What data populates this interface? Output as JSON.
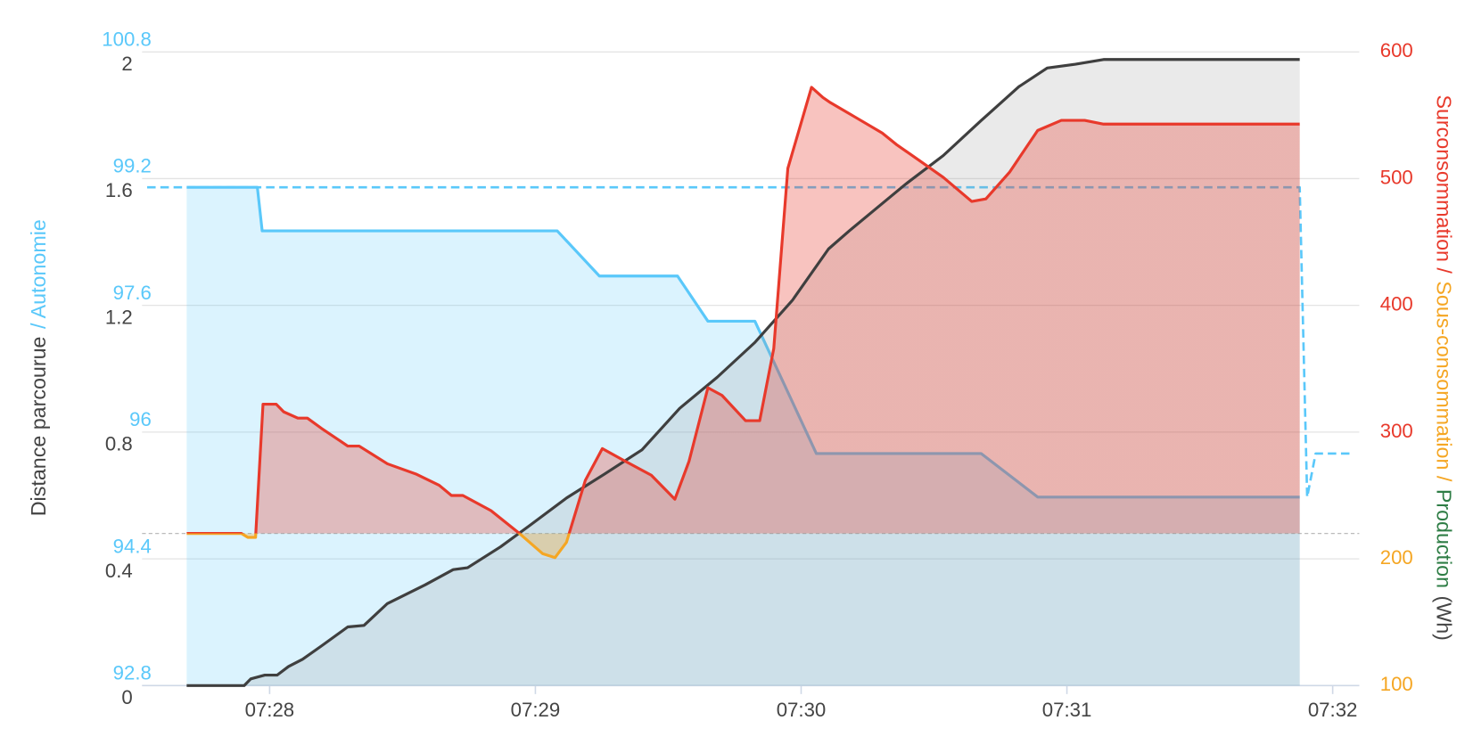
{
  "chart_data": {
    "type": "line",
    "grid": true,
    "xlim": [
      27.52,
      32.1
    ],
    "xticks": [
      {
        "value": 28,
        "label": "07:28"
      },
      {
        "value": 29,
        "label": "07:29"
      },
      {
        "value": 30,
        "label": "07:30"
      },
      {
        "value": 31,
        "label": "07:31"
      },
      {
        "value": 32,
        "label": "07:32"
      }
    ],
    "ylim": [
      0,
      2
    ],
    "yticks": [
      0,
      0.4,
      0.8,
      1.2,
      1.6,
      2
    ],
    "y3lim": [
      92.8,
      100.8
    ],
    "y3ticks": [
      92.8,
      94.4,
      96,
      97.6,
      99.2,
      100.8
    ],
    "y2lim": [
      100,
      600
    ],
    "y2ticks": [
      100,
      200,
      300,
      400,
      500,
      600
    ],
    "baseline": 220,
    "ylabel": [
      {
        "text": "Distance parcourue",
        "color": "#444444"
      },
      {
        "text": "/ Autonomie",
        "color": "#5ac8fa"
      }
    ],
    "y2label": [
      {
        "text": "Surconsommation /",
        "color": "#e8392b"
      },
      {
        "text": "Sous-consommation /",
        "color": "#f5a623"
      },
      {
        "text": "Production",
        "color": "#2e7d45"
      },
      {
        "text": "(Wh)",
        "color": "#444444"
      }
    ],
    "series": [
      {
        "axis": "y3",
        "color": "#5ac8fa",
        "fill": "rgba(90,200,250,0.22)",
        "x": [
          27.688,
          27.954,
          27.972,
          29.082,
          29.241,
          29.535,
          29.649,
          29.826,
          30.057,
          30.677,
          30.89,
          31.876
        ],
        "values": [
          99.09,
          99.09,
          98.54,
          98.54,
          97.97,
          97.97,
          97.4,
          97.4,
          95.73,
          95.73,
          95.18,
          95.18
        ]
      },
      {
        "axis": "y3",
        "color": "#5ac8fa",
        "dashed": true,
        "x": [
          27.539,
          31.876,
          31.904,
          31.936,
          32.067
        ],
        "values": [
          99.09,
          99.09,
          95.18,
          95.73,
          95.73
        ]
      },
      {
        "axis": "y",
        "color": "#3f3f3f",
        "fill": "rgba(150,150,150,0.2)",
        "x": [
          27.688,
          27.904,
          27.929,
          27.982,
          28.028,
          28.071,
          28.124,
          28.195,
          28.294,
          28.355,
          28.443,
          28.585,
          28.691,
          28.745,
          28.869,
          28.975,
          29.117,
          29.259,
          29.401,
          29.543,
          29.684,
          29.826,
          29.968,
          30.103,
          30.181,
          30.287,
          30.394,
          30.535,
          30.677,
          30.819,
          30.926,
          31.032,
          31.138,
          31.876
        ],
        "values": [
          0,
          0,
          0.021,
          0.033,
          0.033,
          0.06,
          0.083,
          0.125,
          0.185,
          0.19,
          0.259,
          0.318,
          0.366,
          0.372,
          0.438,
          0.503,
          0.592,
          0.667,
          0.744,
          0.875,
          0.973,
          1.083,
          1.217,
          1.378,
          1.435,
          1.509,
          1.583,
          1.673,
          1.783,
          1.89,
          1.949,
          1.961,
          1.976,
          1.976
        ]
      },
      {
        "axis": "y2",
        "color": "#e8392b",
        "color_below": "#f5a623",
        "fill": "rgba(232,57,43,0.3)",
        "fill_below": "rgba(245,166,35,0.3)",
        "x": [
          27.688,
          27.894,
          27.918,
          27.947,
          27.975,
          28.025,
          28.053,
          28.106,
          28.142,
          28.195,
          28.294,
          28.337,
          28.443,
          28.55,
          28.638,
          28.684,
          28.727,
          28.833,
          28.94,
          29.028,
          29.074,
          29.117,
          29.188,
          29.252,
          29.33,
          29.436,
          29.525,
          29.578,
          29.649,
          29.702,
          29.791,
          29.844,
          29.897,
          29.95,
          30.039,
          30.082,
          30.11,
          30.199,
          30.305,
          30.358,
          30.447,
          30.535,
          30.642,
          30.695,
          30.784,
          30.89,
          30.979,
          31.067,
          31.138,
          31.876
        ],
        "values": [
          220,
          220,
          217,
          217,
          322,
          322,
          316,
          311,
          311,
          303,
          289,
          289,
          275,
          267,
          258,
          250,
          250,
          238,
          220,
          204,
          201,
          213,
          262,
          287,
          278,
          266,
          247,
          277,
          335,
          329,
          309,
          309,
          366,
          508,
          572,
          564,
          560,
          549,
          536,
          527,
          514,
          501,
          482,
          484,
          505,
          538,
          546,
          546,
          543,
          543
        ]
      }
    ]
  }
}
